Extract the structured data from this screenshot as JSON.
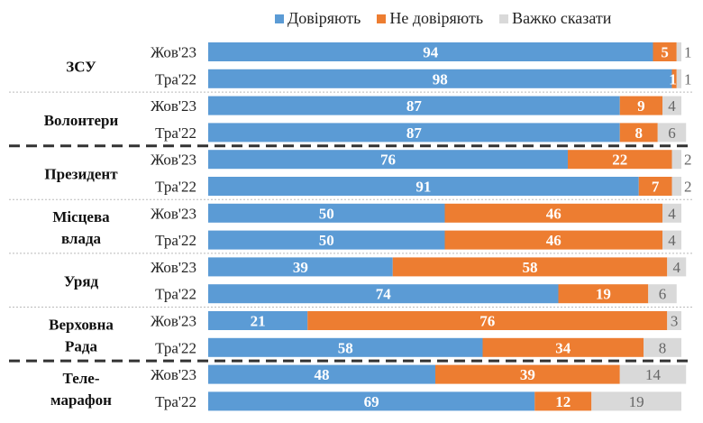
{
  "chart_data": {
    "type": "bar",
    "orientation": "horizontal",
    "stacked": true,
    "xlim": [
      0,
      100
    ],
    "grid": false,
    "legend_placement": "top",
    "series": [
      {
        "name": "Довіряють",
        "color": "#5B9BD5"
      },
      {
        "name": "Не довіряють",
        "color": "#ED7D31"
      },
      {
        "name": "Важко сказати",
        "color": "#D9D9D9"
      }
    ],
    "groups": [
      {
        "label": [
          "ЗСУ"
        ],
        "rows": [
          {
            "period": "Жов'23",
            "values": [
              94,
              5,
              1
            ]
          },
          {
            "period": "Тра'22",
            "values": [
              98,
              1,
              1
            ]
          }
        ]
      },
      {
        "label": [
          "Волонтери"
        ],
        "rows": [
          {
            "period": "Жов'23",
            "values": [
              87,
              9,
              4
            ]
          },
          {
            "period": "Тра'22",
            "values": [
              87,
              8,
              6
            ]
          }
        ]
      },
      {
        "label": [
          "Президент"
        ],
        "rows": [
          {
            "period": "Жов'23",
            "values": [
              76,
              22,
              2
            ]
          },
          {
            "period": "Тра'22",
            "values": [
              91,
              7,
              2
            ]
          }
        ]
      },
      {
        "label": [
          "Місцева",
          "влада"
        ],
        "rows": [
          {
            "period": "Жов'23",
            "values": [
              50,
              46,
              4
            ]
          },
          {
            "period": "Тра'22",
            "values": [
              50,
              46,
              4
            ]
          }
        ]
      },
      {
        "label": [
          "Уряд"
        ],
        "rows": [
          {
            "period": "Жов'23",
            "values": [
              39,
              58,
              4
            ]
          },
          {
            "period": "Тра'22",
            "values": [
              74,
              19,
              6
            ]
          }
        ]
      },
      {
        "label": [
          "Верховна",
          "Рада"
        ],
        "rows": [
          {
            "period": "Жов'23",
            "values": [
              21,
              76,
              3
            ]
          },
          {
            "period": "Тра'22",
            "values": [
              58,
              34,
              8
            ]
          }
        ]
      },
      {
        "label": [
          "Теле-",
          "марафон"
        ],
        "rows": [
          {
            "period": "Жов'23",
            "values": [
              48,
              39,
              14
            ]
          },
          {
            "period": "Тра'22",
            "values": [
              69,
              12,
              19
            ]
          }
        ]
      }
    ],
    "separators": [
      "dotted",
      "dashed",
      "dotted",
      "dotted",
      "dotted",
      "dashed"
    ]
  }
}
